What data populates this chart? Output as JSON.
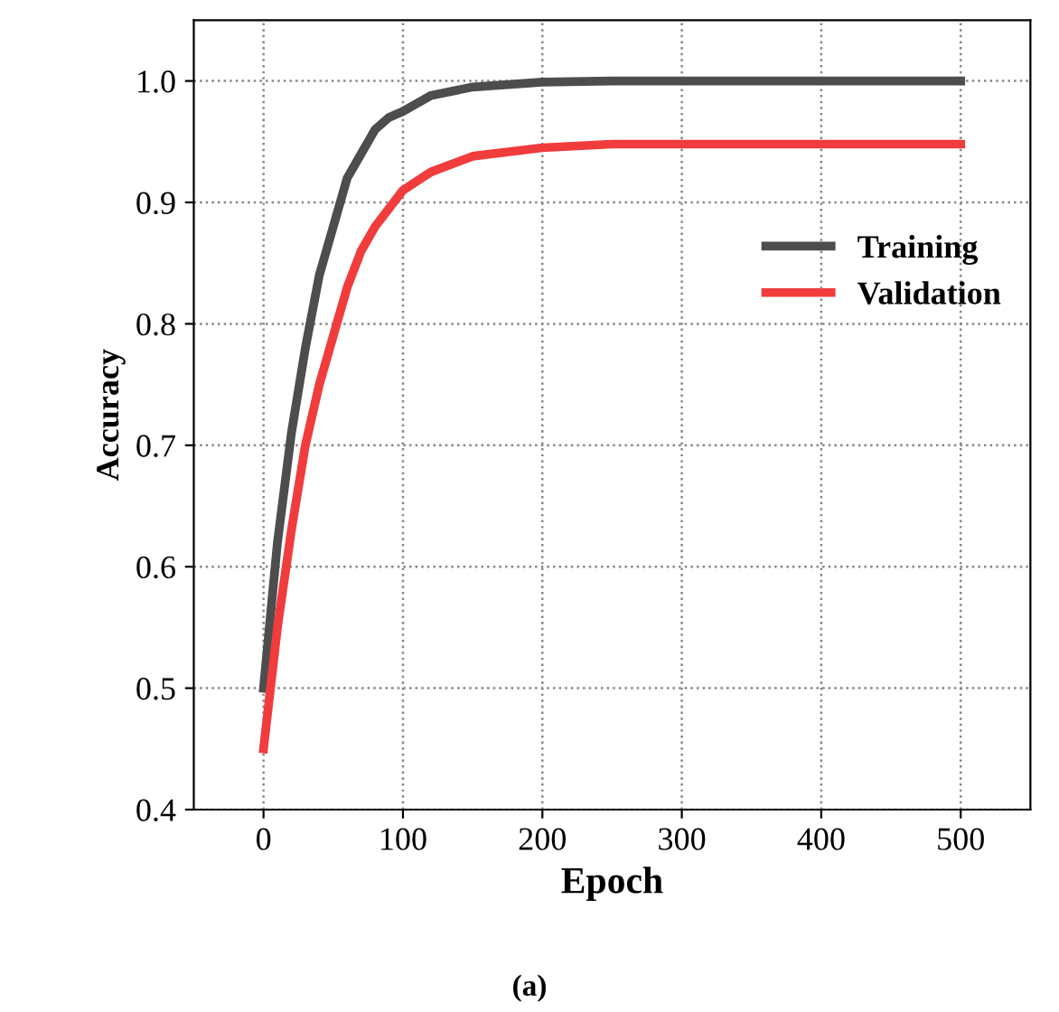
{
  "chart_data": {
    "type": "line",
    "xlabel": "Epoch",
    "ylabel": "Accuracy",
    "annotations": [
      "(a)"
    ],
    "xlim": [
      -50,
      550
    ],
    "xticks": [
      0,
      100,
      200,
      300,
      400,
      500
    ],
    "ylim": [
      0.4,
      1.05
    ],
    "yticks": [
      {
        "value": 0.4,
        "label": "0.4"
      },
      {
        "value": 0.5,
        "label": "0.5"
      },
      {
        "value": 0.6,
        "label": "0.6"
      },
      {
        "value": 0.7,
        "label": "0.7"
      },
      {
        "value": 0.8,
        "label": "0.8"
      },
      {
        "value": 0.9,
        "label": "0.9"
      },
      {
        "value": 1.0,
        "label": "1.0"
      }
    ],
    "grid": true,
    "legend": "right",
    "marker": "none",
    "line_style": "solid",
    "series": [
      {
        "name": "Training",
        "color": "#4d4d4d",
        "x": [
          0,
          10,
          20,
          30,
          40,
          50,
          60,
          70,
          80,
          90,
          100,
          120,
          150,
          200,
          250,
          500
        ],
        "values": [
          0.5,
          0.62,
          0.71,
          0.78,
          0.84,
          0.88,
          0.92,
          0.94,
          0.96,
          0.97,
          0.975,
          0.988,
          0.995,
          0.999,
          1.0,
          1.0
        ]
      },
      {
        "name": "Validation",
        "color": "#f03c3c",
        "x": [
          0,
          10,
          20,
          30,
          40,
          50,
          60,
          70,
          80,
          90,
          100,
          120,
          150,
          200,
          250,
          500
        ],
        "values": [
          0.45,
          0.55,
          0.63,
          0.7,
          0.75,
          0.79,
          0.83,
          0.86,
          0.88,
          0.895,
          0.91,
          0.925,
          0.938,
          0.945,
          0.948,
          0.948
        ]
      }
    ]
  }
}
